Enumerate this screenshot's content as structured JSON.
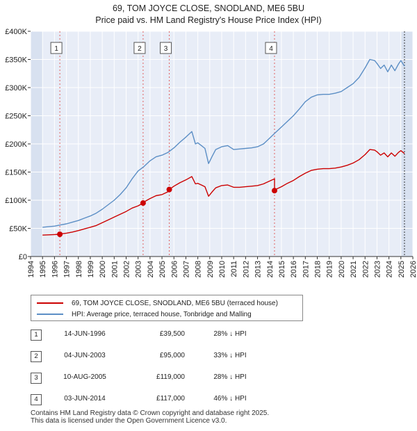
{
  "header": {
    "title_line1": "69, TOM JOYCE CLOSE, SNODLAND, ME6 5BU",
    "title_line2": "Price paid vs. HM Land Registry's House Price Index (HPI)"
  },
  "legend": {
    "property": "69, TOM JOYCE CLOSE, SNODLAND, ME6 5BU (terraced house)",
    "hpi": "HPI: Average price, terraced house, Tonbridge and Malling"
  },
  "colors": {
    "property": "#cc0000",
    "hpi": "#5b8ec5",
    "plot_bg": "#e8edf7",
    "shade": "#d8e1f0",
    "grid": "#ffffff",
    "marker_line": "#e06060"
  },
  "transactions": [
    {
      "num": "1",
      "date": "14-JUN-1996",
      "price": "£39,500",
      "hpi_diff": "28% ↓ HPI"
    },
    {
      "num": "2",
      "date": "04-JUN-2003",
      "price": "£95,000",
      "hpi_diff": "33% ↓ HPI"
    },
    {
      "num": "3",
      "date": "10-AUG-2005",
      "price": "£119,000",
      "hpi_diff": "28% ↓ HPI"
    },
    {
      "num": "4",
      "date": "03-JUN-2014",
      "price": "£117,000",
      "hpi_diff": "46% ↓ HPI"
    }
  ],
  "footer": {
    "line1": "Contains HM Land Registry data © Crown copyright and database right 2025.",
    "line2": "This data is licensed under the Open Government Licence v3.0."
  },
  "chart_data": {
    "type": "line",
    "title": "69, TOM JOYCE CLOSE, SNODLAND, ME6 5BU",
    "subtitle": "Price paid vs. HM Land Registry's House Price Index (HPI)",
    "xlabel": "",
    "ylabel": "",
    "xlim": [
      1994,
      2026
    ],
    "ylim": [
      0,
      400000
    ],
    "yticks": [
      0,
      50000,
      100000,
      150000,
      200000,
      250000,
      300000,
      350000,
      400000
    ],
    "ytick_labels": [
      "£0",
      "£50K",
      "£100K",
      "£150K",
      "£200K",
      "£250K",
      "£300K",
      "£350K",
      "£400K"
    ],
    "xticks": [
      1994,
      1995,
      1996,
      1997,
      1998,
      1999,
      2000,
      2001,
      2002,
      2003,
      2004,
      2005,
      2006,
      2007,
      2008,
      2009,
      2010,
      2011,
      2012,
      2013,
      2014,
      2015,
      2016,
      2017,
      2018,
      2019,
      2020,
      2021,
      2022,
      2023,
      2024,
      2025,
      2026
    ],
    "grid": true,
    "shaded_ranges": [
      [
        1994,
        1995
      ],
      [
        2025,
        2026
      ]
    ],
    "series": [
      {
        "name": "HPI: Average price, terraced house, Tonbridge and Malling",
        "x": [
          1995.0,
          1995.5,
          1996.0,
          1996.5,
          1997.0,
          1997.5,
          1998.0,
          1998.5,
          1999.0,
          1999.5,
          2000.0,
          2000.5,
          2001.0,
          2001.5,
          2002.0,
          2002.5,
          2003.0,
          2003.5,
          2004.0,
          2004.5,
          2005.0,
          2005.5,
          2006.0,
          2006.5,
          2007.0,
          2007.5,
          2007.8,
          2008.0,
          2008.3,
          2008.6,
          2008.9,
          2009.2,
          2009.5,
          2010.0,
          2010.5,
          2011.0,
          2011.5,
          2012.0,
          2012.5,
          2013.0,
          2013.5,
          2014.0,
          2014.5,
          2015.0,
          2015.5,
          2016.0,
          2016.5,
          2017.0,
          2017.5,
          2018.0,
          2018.5,
          2019.0,
          2019.5,
          2020.0,
          2020.5,
          2021.0,
          2021.5,
          2022.0,
          2022.4,
          2022.8,
          2023.0,
          2023.3,
          2023.6,
          2023.9,
          2024.2,
          2024.5,
          2024.8,
          2025.0,
          2025.3
        ],
        "values": [
          52000,
          53000,
          54000,
          56000,
          58000,
          61000,
          64000,
          68000,
          72000,
          77000,
          84000,
          92000,
          100000,
          110000,
          122000,
          138000,
          152000,
          160000,
          170000,
          177000,
          180000,
          185000,
          193000,
          203000,
          212000,
          222000,
          200000,
          202000,
          197000,
          192000,
          165000,
          178000,
          190000,
          195000,
          197000,
          190000,
          191000,
          192000,
          193000,
          195000,
          200000,
          210000,
          220000,
          230000,
          240000,
          250000,
          262000,
          275000,
          283000,
          287000,
          288000,
          288000,
          290000,
          293000,
          300000,
          307000,
          318000,
          335000,
          350000,
          348000,
          343000,
          334000,
          340000,
          328000,
          340000,
          330000,
          342000,
          348000,
          338000
        ]
      },
      {
        "name": "69, TOM JOYCE CLOSE, SNODLAND, ME6 5BU (terraced house)",
        "x": [
          1995.0,
          1995.5,
          1996.0,
          1996.45,
          1996.5,
          1997.0,
          1997.5,
          1998.0,
          1998.5,
          1999.0,
          1999.5,
          2000.0,
          2000.5,
          2001.0,
          2001.5,
          2002.0,
          2002.5,
          2003.0,
          2003.42,
          2003.5,
          2004.0,
          2004.5,
          2005.0,
          2005.5,
          2005.61,
          2006.0,
          2006.5,
          2007.0,
          2007.5,
          2007.8,
          2008.0,
          2008.3,
          2008.6,
          2008.9,
          2009.2,
          2009.5,
          2010.0,
          2010.5,
          2011.0,
          2011.5,
          2012.0,
          2012.5,
          2013.0,
          2013.5,
          2014.0,
          2014.42,
          2014.42,
          2014.5,
          2015.0,
          2015.5,
          2016.0,
          2016.5,
          2017.0,
          2017.5,
          2018.0,
          2018.5,
          2019.0,
          2019.5,
          2020.0,
          2020.5,
          2021.0,
          2021.5,
          2022.0,
          2022.4,
          2022.8,
          2023.0,
          2023.3,
          2023.6,
          2023.9,
          2024.2,
          2024.5,
          2024.8,
          2025.0,
          2025.3
        ],
        "values": [
          38000,
          38500,
          39000,
          39500,
          40000,
          41500,
          43500,
          46000,
          49000,
          52000,
          55000,
          60000,
          65000,
          70000,
          75000,
          80000,
          86000,
          90000,
          95000,
          97000,
          103000,
          108000,
          110000,
          115000,
          119000,
          125000,
          131000,
          136000,
          142000,
          129000,
          130000,
          127000,
          124000,
          107000,
          115000,
          122000,
          126000,
          127000,
          123000,
          123000,
          124000,
          125000,
          126000,
          129000,
          134000,
          138000,
          117000,
          119000,
          124000,
          130000,
          135000,
          142000,
          148000,
          153000,
          155000,
          156000,
          156000,
          157000,
          159000,
          162000,
          166000,
          172000,
          181000,
          190000,
          189000,
          186000,
          180000,
          184000,
          177000,
          184000,
          178000,
          185000,
          188000,
          183000
        ]
      }
    ],
    "sales": [
      {
        "label": "1",
        "x": 1996.45,
        "y": 39500
      },
      {
        "label": "2",
        "x": 2003.42,
        "y": 95000
      },
      {
        "label": "3",
        "x": 2005.61,
        "y": 119000
      },
      {
        "label": "4",
        "x": 2014.42,
        "y": 117000
      }
    ]
  }
}
